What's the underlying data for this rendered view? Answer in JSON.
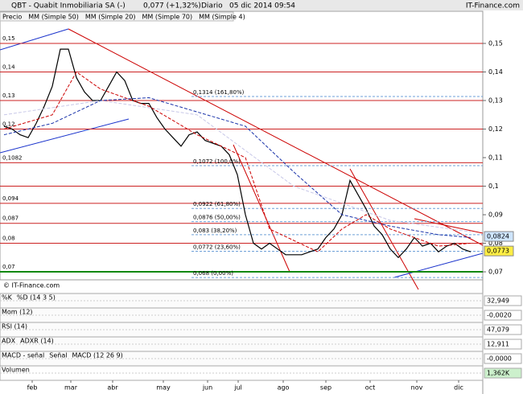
{
  "chart_data": {
    "type": "line",
    "title": "QBT - Quabit Inmobiliaria SA (-)",
    "quote": "0,077 (+1,32%)",
    "period": "Diario",
    "date": "05 dic 2014 09:54",
    "brand": "IT-Finance.com",
    "copyright": "© IT-Finance.com",
    "xlim": [
      -0.5,
      59
    ],
    "xticks": [
      {
        "value": 3.5,
        "label": "feb"
      },
      {
        "value": 8.3,
        "label": "mar"
      },
      {
        "value": 13.5,
        "label": "abr"
      },
      {
        "value": 19.8,
        "label": "may"
      },
      {
        "value": 25.3,
        "label": "jun"
      },
      {
        "value": 29.1,
        "label": "jul"
      },
      {
        "value": 34.7,
        "label": "ago"
      },
      {
        "value": 40,
        "label": "sep"
      },
      {
        "value": 45.5,
        "label": "oct"
      },
      {
        "value": 51.3,
        "label": "nov"
      },
      {
        "value": 56.5,
        "label": "dic"
      }
    ],
    "ylim": [
      0.0672,
      0.1607
    ],
    "yticks": [
      {
        "value": 0.15,
        "label": "0,15"
      },
      {
        "value": 0.14,
        "label": "0,14"
      },
      {
        "value": 0.13,
        "label": "0,13"
      },
      {
        "value": 0.12,
        "label": "0,12"
      },
      {
        "value": 0.11,
        "label": "0,11"
      },
      {
        "value": 0.1,
        "label": "0,1"
      },
      {
        "value": 0.09,
        "label": "0,09"
      },
      {
        "value": 0.08,
        "label": "0,08"
      },
      {
        "value": 0.07,
        "label": "0,07"
      }
    ],
    "series": [
      {
        "name": "Precio",
        "color": "#000000",
        "values": [
          0.121,
          0.12,
          0.118,
          0.117,
          0.122,
          0.128,
          0.135,
          0.148,
          0.148,
          0.138,
          0.133,
          0.13,
          0.13,
          0.135,
          0.14,
          0.137,
          0.13,
          0.129,
          0.129,
          0.124,
          0.12,
          0.117,
          0.114,
          0.118,
          0.119,
          0.116,
          0.115,
          0.114,
          0.111,
          0.104,
          0.09,
          0.08,
          0.078,
          0.08,
          0.078,
          0.076,
          0.076,
          0.076,
          0.077,
          0.078,
          0.082,
          0.085,
          0.09,
          0.102,
          0.097,
          0.092,
          0.086,
          0.083,
          0.078,
          0.075,
          0.078,
          0.082,
          0.079,
          0.08,
          0.077,
          0.079,
          0.08,
          0.078,
          0.077
        ]
      },
      {
        "name": "MM (Simple 50)",
        "color": "#c8c8e8",
        "x": [
          0,
          12,
          24,
          36,
          48,
          58
        ],
        "values": [
          0.125,
          0.13,
          0.125,
          0.1,
          0.088,
          0.084
        ]
      },
      {
        "name": "MM (Simple 20)",
        "color": "#cc0000",
        "x": [
          0,
          6,
          9,
          12,
          18,
          24,
          30,
          33,
          39,
          42,
          45,
          48,
          54,
          58
        ],
        "values": [
          0.12,
          0.125,
          0.14,
          0.134,
          0.128,
          0.118,
          0.11,
          0.085,
          0.077,
          0.085,
          0.09,
          0.085,
          0.079,
          0.08
        ]
      },
      {
        "name": "MM (Simple 70)",
        "color": "#1a33aa",
        "x": [
          0,
          6,
          12,
          18,
          24,
          30,
          36,
          42,
          48,
          54,
          58
        ],
        "values": [
          0.118,
          0.122,
          0.13,
          0.131,
          0.126,
          0.121,
          0.105,
          0.09,
          0.086,
          0.083,
          0.082
        ]
      },
      {
        "name": "MM (Simple 4)",
        "color": "#228822"
      }
    ],
    "levels": [
      {
        "value": 0.15,
        "label": "0,15"
      },
      {
        "value": 0.14,
        "label": "0,14"
      },
      {
        "value": 0.13,
        "label": "0,13"
      },
      {
        "value": 0.12,
        "label": "0,12"
      },
      {
        "value": 0.1082,
        "label": "0,1082"
      },
      {
        "value": 0.094,
        "label": "0,094"
      },
      {
        "value": 0.087,
        "label": "0,087"
      },
      {
        "value": 0.08,
        "label": "0,08"
      },
      {
        "value": 0.07,
        "label": "0,07"
      }
    ],
    "unlabeled_levels": [
      0.1
    ],
    "fib_levels": [
      {
        "value": 0.1314,
        "label": "0,1314 (161,80%)"
      },
      {
        "value": 0.1072,
        "label": "0,1072 (100,0%)"
      },
      {
        "value": 0.0922,
        "label": "0,0922 (61,80%)"
      },
      {
        "value": 0.0876,
        "label": "0,0876 (50,00%)"
      },
      {
        "value": 0.083,
        "label": "0,083 (38,20%)"
      },
      {
        "value": 0.0772,
        "label": "0,0772 (23,60%)"
      },
      {
        "value": 0.068,
        "label": "0,068 (0,00%)"
      }
    ],
    "markers": [
      {
        "value": 0.0824,
        "label": "0,0824",
        "color": "#cfe6ff"
      },
      {
        "value": 0.0773,
        "label": "0,0773",
        "color": "#ffee44"
      }
    ],
    "indicators": [
      {
        "labels": [
          "%K",
          "%D (14 3 5)"
        ],
        "last": "32,949"
      },
      {
        "labels": [
          "Mom (12)"
        ],
        "last": "-0,0020"
      },
      {
        "labels": [
          "RSI (14)"
        ],
        "last": "47,079"
      },
      {
        "labels": [
          "ADX",
          "ADXR (14)"
        ],
        "last": "12,911"
      },
      {
        "labels": [
          "MACD - señal",
          "Señal",
          "MACD (12 26 9)"
        ],
        "last": "-0,0000"
      },
      {
        "labels": [
          "Volumen"
        ],
        "last": "1,362K"
      }
    ]
  }
}
